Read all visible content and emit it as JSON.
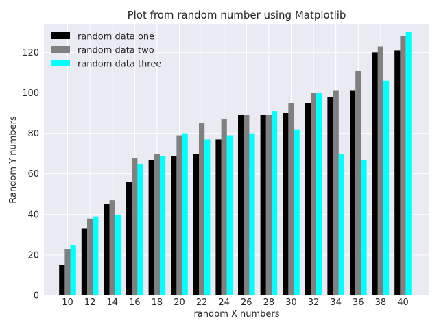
{
  "chart_data": {
    "type": "bar",
    "title": "Plot from random number using Matplotlib",
    "xlabel": "random X numbers",
    "ylabel": "Random Y numbers",
    "categories": [
      "10",
      "12",
      "14",
      "16",
      "18",
      "20",
      "22",
      "24",
      "26",
      "28",
      "30",
      "32",
      "34",
      "36",
      "38",
      "40"
    ],
    "ylim": [
      0,
      134
    ],
    "yticks": [
      0,
      20,
      40,
      60,
      80,
      100,
      120
    ],
    "grid": true,
    "legend_position": "top-left",
    "series": [
      {
        "name": "random data one",
        "color": "#000000",
        "values": [
          15,
          33,
          45,
          56,
          67,
          69,
          70,
          77,
          89,
          89,
          90,
          95,
          98,
          101,
          120,
          121
        ]
      },
      {
        "name": "random data two",
        "color": "#808080",
        "values": [
          23,
          38,
          47,
          68,
          70,
          79,
          85,
          87,
          89,
          89,
          95,
          100,
          101,
          111,
          123,
          128
        ]
      },
      {
        "name": "random data three",
        "color": "#00ffff",
        "values": [
          25,
          39,
          40,
          65,
          69,
          80,
          77,
          79,
          80,
          91,
          82,
          100,
          70,
          67,
          106,
          130
        ]
      }
    ]
  }
}
